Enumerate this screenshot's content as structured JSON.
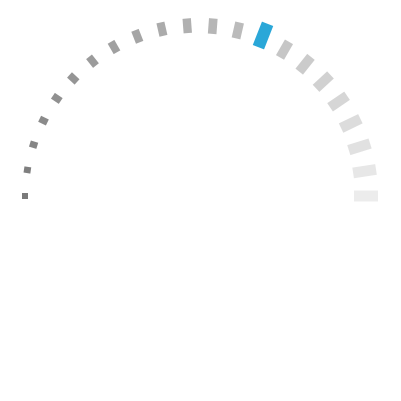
{
  "gauge": {
    "segment_count": 22,
    "active_index": 13,
    "value_fraction": 0.62,
    "colors": {
      "active": "#2aa7d8",
      "inactive_start": "#7a7a7a",
      "inactive_end": "#ececec"
    }
  }
}
